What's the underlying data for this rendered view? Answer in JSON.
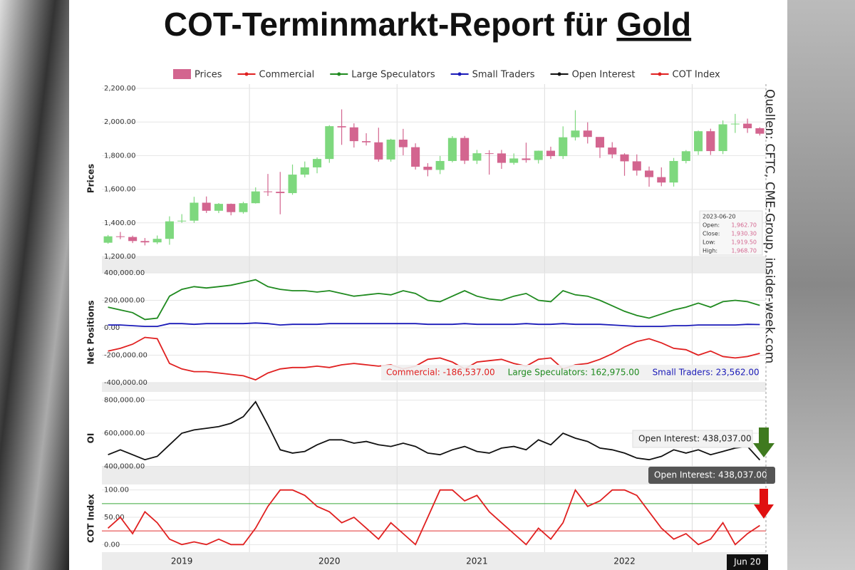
{
  "header": {
    "title": "COT-Terminmarkt-Report für",
    "title_emphasis": "Gold",
    "source": "Quellen: CFTC, CME-Group, insider-week.com"
  },
  "chart_data": [
    {
      "type": "candlestick",
      "y_label": "Prices",
      "series_name": "Prices",
      "up_color": "#7ed87e",
      "down_color": "#d3658f",
      "legend_color": "#d3658f",
      "ylim": [
        1200,
        2200
      ],
      "yticks": [
        {
          "value": 1200,
          "label": "1,200.00"
        },
        {
          "value": 1400,
          "label": "1,400.00"
        },
        {
          "value": 1600,
          "label": "1,600.00"
        },
        {
          "value": 1800,
          "label": "1,800.00"
        },
        {
          "value": 2000,
          "label": "2,000.00"
        },
        {
          "value": 2200,
          "label": "2,200.00"
        }
      ],
      "open": [
        1282,
        1320,
        1316,
        1292,
        1284,
        1305,
        1409,
        1413,
        1520,
        1472,
        1513,
        1464,
        1517,
        1587,
        1585,
        1577,
        1687,
        1730,
        1780,
        1975,
        1968,
        1886,
        1879,
        1777,
        1895,
        1850,
        1734,
        1715,
        1768,
        1905,
        1770,
        1814,
        1813,
        1757,
        1783,
        1774,
        1829,
        1797,
        1909,
        1949,
        1911,
        1848,
        1807,
        1766,
        1711,
        1672,
        1640,
        1768,
        1826,
        1945,
        1827,
        1986,
        1990,
        1962.7
      ],
      "high": [
        1328,
        1346,
        1324,
        1310,
        1325,
        1439,
        1452,
        1555,
        1557,
        1518,
        1515,
        1525,
        1611,
        1691,
        1703,
        1747,
        1765,
        1789,
        1981,
        2075,
        1992,
        1933,
        1966,
        1900,
        1959,
        1873,
        1755,
        1798,
        1916,
        1917,
        1834,
        1832,
        1834,
        1813,
        1877,
        1830,
        1853,
        1974,
        2070,
        1998,
        1910,
        1880,
        1814,
        1807,
        1735,
        1730,
        1786,
        1833,
        1949,
        1960,
        2009,
        2048,
        2020,
        1968.7
      ],
      "low": [
        1276,
        1303,
        1280,
        1266,
        1274,
        1270,
        1400,
        1400,
        1459,
        1458,
        1445,
        1455,
        1515,
        1560,
        1451,
        1567,
        1670,
        1695,
        1757,
        1864,
        1848,
        1860,
        1764,
        1764,
        1802,
        1717,
        1677,
        1690,
        1760,
        1750,
        1750,
        1687,
        1721,
        1746,
        1758,
        1753,
        1780,
        1780,
        1890,
        1872,
        1786,
        1784,
        1680,
        1681,
        1615,
        1618,
        1616,
        1754,
        1804,
        1804,
        1809,
        1935,
        1935,
        1919.5
      ],
      "close": [
        1320,
        1316,
        1292,
        1284,
        1305,
        1409,
        1413,
        1520,
        1472,
        1513,
        1464,
        1517,
        1587,
        1585,
        1577,
        1687,
        1730,
        1780,
        1975,
        1968,
        1886,
        1879,
        1777,
        1895,
        1850,
        1734,
        1715,
        1768,
        1905,
        1770,
        1814,
        1813,
        1757,
        1783,
        1774,
        1829,
        1797,
        1909,
        1949,
        1911,
        1848,
        1807,
        1766,
        1711,
        1672,
        1640,
        1768,
        1826,
        1945,
        1827,
        1986,
        1990,
        1962.7,
        1930.3
      ],
      "tooltip": {
        "date": "2023-06-20",
        "rows": [
          [
            "Open:",
            "1,962.70"
          ],
          [
            "Close:",
            "1,930.30"
          ],
          [
            "Low:",
            "1,919.50"
          ],
          [
            "High:",
            "1,968.70"
          ]
        ]
      }
    },
    {
      "type": "line",
      "y_label": "Net Positions",
      "ylim": [
        -400000,
        400000
      ],
      "yticks": [
        {
          "value": -400000,
          "label": "-400,000.00"
        },
        {
          "value": -200000,
          "label": "-200,000.00"
        },
        {
          "value": 0,
          "label": "0.00"
        },
        {
          "value": 200000,
          "label": "200,000.00"
        },
        {
          "value": 400000,
          "label": "400,000.00"
        }
      ],
      "series": [
        {
          "name": "Commercial",
          "color": "#e02020",
          "readout": "Commercial: -186,537.00",
          "values": [
            -170000,
            -150000,
            -120000,
            -70000,
            -80000,
            -260000,
            -300000,
            -320000,
            -320000,
            -330000,
            -340000,
            -350000,
            -380000,
            -330000,
            -300000,
            -290000,
            -290000,
            -280000,
            -290000,
            -270000,
            -260000,
            -270000,
            -280000,
            -270000,
            -300000,
            -280000,
            -230000,
            -220000,
            -250000,
            -300000,
            -250000,
            -240000,
            -230000,
            -260000,
            -280000,
            -230000,
            -220000,
            -300000,
            -270000,
            -260000,
            -230000,
            -190000,
            -140000,
            -100000,
            -80000,
            -110000,
            -150000,
            -160000,
            -200000,
            -170000,
            -210000,
            -220000,
            -210000,
            -186537
          ]
        },
        {
          "name": "Large Speculators",
          "color": "#1f8a1f",
          "readout": "Large Speculators: 162,975.00",
          "values": [
            150000,
            130000,
            110000,
            60000,
            70000,
            230000,
            280000,
            300000,
            290000,
            300000,
            310000,
            330000,
            350000,
            300000,
            280000,
            270000,
            270000,
            260000,
            270000,
            250000,
            230000,
            240000,
            250000,
            240000,
            270000,
            250000,
            200000,
            190000,
            230000,
            270000,
            230000,
            210000,
            200000,
            230000,
            250000,
            200000,
            190000,
            270000,
            240000,
            230000,
            200000,
            160000,
            120000,
            90000,
            70000,
            100000,
            130000,
            150000,
            180000,
            150000,
            190000,
            200000,
            190000,
            162975
          ]
        },
        {
          "name": "Small Traders",
          "color": "#1a1ab8",
          "readout": "Small Traders: 23,562.00",
          "values": [
            20000,
            20000,
            15000,
            10000,
            10000,
            30000,
            30000,
            25000,
            30000,
            30000,
            30000,
            30000,
            35000,
            30000,
            20000,
            25000,
            25000,
            25000,
            30000,
            30000,
            30000,
            30000,
            30000,
            30000,
            30000,
            30000,
            25000,
            25000,
            25000,
            30000,
            25000,
            25000,
            25000,
            25000,
            30000,
            25000,
            25000,
            30000,
            25000,
            25000,
            25000,
            20000,
            15000,
            10000,
            10000,
            10000,
            15000,
            15000,
            20000,
            20000,
            20000,
            20000,
            25000,
            23562
          ]
        }
      ]
    },
    {
      "type": "line",
      "y_label": "OI",
      "ylim": [
        290000,
        850000
      ],
      "yticks": [
        {
          "value": 400000,
          "label": "400,000.00"
        },
        {
          "value": 600000,
          "label": "600,000.00"
        },
        {
          "value": 800000,
          "label": "800,000.00"
        }
      ],
      "series": [
        {
          "name": "Open Interest",
          "color": "#111111",
          "readout": "Open Interest: 438,037.00",
          "values": [
            470000,
            500000,
            470000,
            440000,
            460000,
            530000,
            600000,
            620000,
            630000,
            640000,
            660000,
            700000,
            790000,
            650000,
            500000,
            480000,
            490000,
            530000,
            560000,
            560000,
            540000,
            550000,
            530000,
            520000,
            540000,
            520000,
            480000,
            470000,
            500000,
            520000,
            490000,
            480000,
            510000,
            520000,
            500000,
            560000,
            530000,
            600000,
            570000,
            550000,
            510000,
            500000,
            480000,
            450000,
            440000,
            460000,
            500000,
            480000,
            500000,
            470000,
            490000,
            510000,
            520000,
            438037
          ]
        }
      ]
    },
    {
      "type": "line",
      "y_label": "COT Index",
      "ylim": [
        -10,
        110
      ],
      "yticks": [
        {
          "value": 0,
          "label": "0.00"
        },
        {
          "value": 50,
          "label": "50.00"
        },
        {
          "value": 100,
          "label": "100.00"
        }
      ],
      "thresholds": [
        {
          "value": 75,
          "color": "#3aa83a"
        },
        {
          "value": 25,
          "color": "#e03030"
        }
      ],
      "categories": [
        null,
        null,
        null,
        null,
        null,
        null,
        "2019",
        null,
        null,
        null,
        null,
        null,
        null,
        null,
        null,
        null,
        null,
        null,
        "2020",
        null,
        null,
        null,
        null,
        null,
        null,
        null,
        null,
        null,
        null,
        null,
        "2021",
        null,
        null,
        null,
        null,
        null,
        null,
        null,
        null,
        null,
        null,
        null,
        "2022",
        null,
        null,
        null,
        null,
        null,
        null,
        null,
        null,
        null,
        null,
        null
      ],
      "cursor_label": "Jun 20",
      "series": [
        {
          "name": "COT Index",
          "color": "#e02020",
          "values": [
            30,
            50,
            20,
            60,
            40,
            10,
            0,
            5,
            0,
            10,
            0,
            0,
            30,
            70,
            100,
            100,
            90,
            70,
            60,
            40,
            50,
            30,
            10,
            40,
            20,
            0,
            50,
            100,
            100,
            80,
            90,
            60,
            40,
            20,
            0,
            30,
            10,
            40,
            100,
            70,
            80,
            100,
            100,
            90,
            60,
            30,
            10,
            20,
            0,
            10,
            40,
            0,
            20,
            35
          ]
        }
      ]
    }
  ]
}
